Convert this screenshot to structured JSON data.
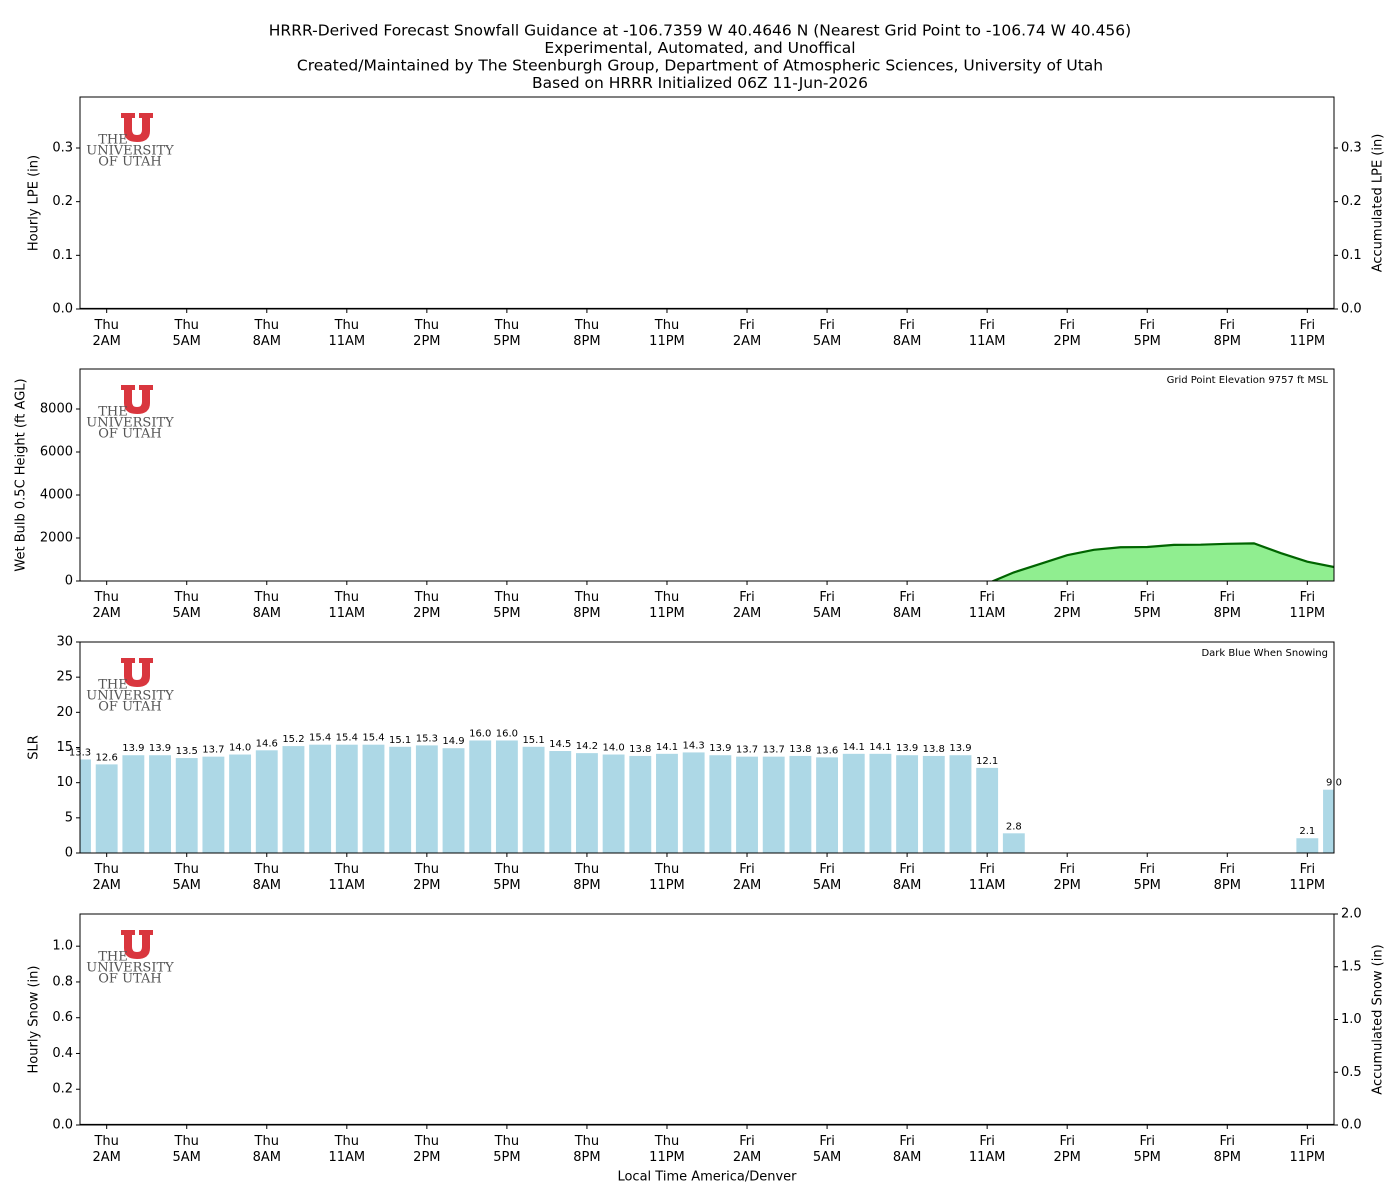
{
  "logo": [
    "THE",
    "UNIVERSITY",
    "OF UTAH"
  ],
  "chart_data": [
    {
      "type": "bar_line",
      "title": [
        "HRRR-Derived Forecast Snowfall Guidance at -106.7359 W 40.4646 N (Nearest Grid Point to -106.74 W 40.456)",
        "Experimental, Automated, and Unoffical",
        "Created/Maintained by The Steenburgh Group, Department of Atmospheric Sciences, University of Utah",
        "Based on HRRR Initialized 06Z 11-Jun-2026"
      ],
      "ylabel": "Hourly LPE (in)",
      "y2label": "Accumulated LPE (in)",
      "x": [
        0,
        1,
        2,
        3,
        4,
        5,
        6,
        7,
        8,
        9,
        10,
        11,
        12,
        13,
        14,
        15,
        16,
        17,
        18,
        19,
        20,
        21,
        22,
        23,
        24,
        25,
        26,
        27,
        28,
        29,
        30,
        31,
        32,
        33,
        34,
        35,
        36,
        37,
        38,
        39,
        40,
        41,
        42,
        43,
        44,
        45,
        46,
        47
      ],
      "xlim": [
        0,
        47
      ],
      "xticks": [
        {
          "value": 1,
          "label": "Thu 2AM"
        },
        {
          "value": 4,
          "label": "Thu 5AM"
        },
        {
          "value": 7,
          "label": "Thu 8AM"
        },
        {
          "value": 10,
          "label": "Thu 11AM"
        },
        {
          "value": 13,
          "label": "Thu 2PM"
        },
        {
          "value": 16,
          "label": "Thu 5PM"
        },
        {
          "value": 19,
          "label": "Thu 8PM"
        },
        {
          "value": 22,
          "label": "Thu 11PM"
        },
        {
          "value": 25,
          "label": "Fri 2AM"
        },
        {
          "value": 28,
          "label": "Fri 5AM"
        },
        {
          "value": 31,
          "label": "Fri 8AM"
        },
        {
          "value": 34,
          "label": "Fri 11AM"
        },
        {
          "value": 37,
          "label": "Fri 2PM"
        },
        {
          "value": 40,
          "label": "Fri 5PM"
        },
        {
          "value": 43,
          "label": "Fri 8PM"
        },
        {
          "value": 46,
          "label": "Fri 11PM"
        }
      ],
      "ylim": [
        0,
        0.395
      ],
      "yticks": [
        {
          "value": 0,
          "label": "0.0"
        },
        0.1,
        0.2,
        0.3
      ],
      "y2lim": [
        0,
        0.395
      ],
      "y2ticks": [
        {
          "value": 0,
          "label": "0.0"
        },
        0.1,
        0.2,
        0.3
      ],
      "series": [
        {
          "color": "#1f77b4",
          "values": [
            0,
            0,
            0,
            0,
            0,
            0,
            0,
            0,
            0,
            0,
            0,
            0,
            0,
            0,
            0,
            0,
            0,
            0,
            0,
            0,
            0,
            0,
            0,
            0,
            0,
            0,
            0,
            0,
            0,
            0,
            0,
            0,
            0,
            0,
            0,
            0,
            0,
            0,
            0,
            0,
            0,
            0,
            0,
            0,
            0,
            0,
            0,
            0
          ]
        },
        {
          "color": "#000000",
          "axis": "y2",
          "values": [
            0,
            0,
            0,
            0,
            0,
            0,
            0,
            0,
            0,
            0,
            0,
            0,
            0,
            0,
            0,
            0,
            0,
            0,
            0,
            0,
            0,
            0,
            0,
            0,
            0,
            0,
            0,
            0,
            0,
            0,
            0,
            0,
            0,
            0,
            0,
            0,
            0,
            0,
            0,
            0,
            0,
            0,
            0,
            0,
            0,
            0,
            0,
            0
          ]
        }
      ]
    },
    {
      "type": "area",
      "ylabel": "Wet Bulb 0.5C Height (ft AGL)",
      "annotation": "Grid Point Elevation 9757 ft MSL",
      "x": [
        0,
        1,
        2,
        3,
        4,
        5,
        6,
        7,
        8,
        9,
        10,
        11,
        12,
        13,
        14,
        15,
        16,
        17,
        18,
        19,
        20,
        21,
        22,
        23,
        24,
        25,
        26,
        27,
        28,
        29,
        30,
        31,
        32,
        33,
        34,
        35,
        36,
        37,
        38,
        39,
        40,
        41,
        42,
        43,
        44,
        45,
        46,
        47
      ],
      "xlim": [
        0,
        47
      ],
      "xticks": [
        {
          "value": 1,
          "label": "Thu 2AM"
        },
        {
          "value": 4,
          "label": "Thu 5AM"
        },
        {
          "value": 7,
          "label": "Thu 8AM"
        },
        {
          "value": 10,
          "label": "Thu 11AM"
        },
        {
          "value": 13,
          "label": "Thu 2PM"
        },
        {
          "value": 16,
          "label": "Thu 5PM"
        },
        {
          "value": 19,
          "label": "Thu 8PM"
        },
        {
          "value": 22,
          "label": "Thu 11PM"
        },
        {
          "value": 25,
          "label": "Fri 2AM"
        },
        {
          "value": 28,
          "label": "Fri 5AM"
        },
        {
          "value": 31,
          "label": "Fri 8AM"
        },
        {
          "value": 34,
          "label": "Fri 11AM"
        },
        {
          "value": 37,
          "label": "Fri 2PM"
        },
        {
          "value": 40,
          "label": "Fri 5PM"
        },
        {
          "value": 43,
          "label": "Fri 8PM"
        },
        {
          "value": 46,
          "label": "Fri 11PM"
        }
      ],
      "ylim": [
        0,
        9860
      ],
      "yticks": [
        0,
        2000,
        4000,
        6000,
        8000
      ],
      "series": [
        {
          "color": "#90ee90",
          "line_color": "#006400",
          "values": [
            null,
            null,
            null,
            null,
            null,
            null,
            null,
            null,
            null,
            null,
            null,
            null,
            null,
            null,
            null,
            null,
            null,
            null,
            null,
            null,
            null,
            null,
            null,
            null,
            null,
            null,
            null,
            null,
            null,
            null,
            null,
            null,
            null,
            null,
            -120,
            400,
            800,
            1200,
            1450,
            1570,
            1580,
            1680,
            1690,
            1730,
            1750,
            1300,
            900,
            650
          ]
        }
      ]
    },
    {
      "type": "bar",
      "ylabel": "SLR",
      "annotation": "Dark Blue When Snowing",
      "x": [
        0,
        1,
        2,
        3,
        4,
        5,
        6,
        7,
        8,
        9,
        10,
        11,
        12,
        13,
        14,
        15,
        16,
        17,
        18,
        19,
        20,
        21,
        22,
        23,
        24,
        25,
        26,
        27,
        28,
        29,
        30,
        31,
        32,
        33,
        34,
        35,
        36,
        37,
        38,
        39,
        40,
        41,
        42,
        43,
        44,
        45,
        46,
        47
      ],
      "xlim": [
        0,
        47
      ],
      "xticks": [
        {
          "value": 1,
          "label": "Thu 2AM"
        },
        {
          "value": 4,
          "label": "Thu 5AM"
        },
        {
          "value": 7,
          "label": "Thu 8AM"
        },
        {
          "value": 10,
          "label": "Thu 11AM"
        },
        {
          "value": 13,
          "label": "Thu 2PM"
        },
        {
          "value": 16,
          "label": "Thu 5PM"
        },
        {
          "value": 19,
          "label": "Thu 8PM"
        },
        {
          "value": 22,
          "label": "Thu 11PM"
        },
        {
          "value": 25,
          "label": "Fri 2AM"
        },
        {
          "value": 28,
          "label": "Fri 5AM"
        },
        {
          "value": 31,
          "label": "Fri 8AM"
        },
        {
          "value": 34,
          "label": "Fri 11AM"
        },
        {
          "value": 37,
          "label": "Fri 2PM"
        },
        {
          "value": 40,
          "label": "Fri 5PM"
        },
        {
          "value": 43,
          "label": "Fri 8PM"
        },
        {
          "value": 46,
          "label": "Fri 11PM"
        }
      ],
      "ylim": [
        0,
        30
      ],
      "yticks": [
        0,
        5,
        10,
        15,
        20,
        25,
        30
      ],
      "series": [
        {
          "color": "#add8e6",
          "values": [
            13.3,
            12.6,
            13.9,
            13.9,
            13.5,
            13.7,
            14,
            14.6,
            15.2,
            15.4,
            15.4,
            15.4,
            15.1,
            15.3,
            14.9,
            16,
            16,
            15.1,
            14.5,
            14.2,
            14,
            13.8,
            14.1,
            14.3,
            13.9,
            13.7,
            13.7,
            13.8,
            13.6,
            14.1,
            14.1,
            13.9,
            13.8,
            13.9,
            12.1,
            2.8,
            null,
            null,
            null,
            null,
            null,
            null,
            null,
            null,
            null,
            null,
            2.1,
            9
          ],
          "value_labels": [
            "13.3",
            "12.6",
            "13.9",
            "13.9",
            "13.5",
            "13.7",
            "14.0",
            "14.6",
            "15.2",
            "15.4",
            "15.4",
            "15.4",
            "15.1",
            "15.3",
            "14.9",
            "16.0",
            "16.0",
            "15.1",
            "14.5",
            "14.2",
            "14.0",
            "13.8",
            "14.1",
            "14.3",
            "13.9",
            "13.7",
            "13.7",
            "13.8",
            "13.6",
            "14.1",
            "14.1",
            "13.9",
            "13.8",
            "13.9",
            "12.1",
            "2.8",
            null,
            null,
            null,
            null,
            null,
            null,
            null,
            null,
            null,
            null,
            "2.1",
            "9.0"
          ]
        }
      ]
    },
    {
      "type": "bar_line",
      "ylabel": "Hourly Snow (in)",
      "y2label": "Accumulated Snow (in)",
      "xlabel": "Local Time America/Denver",
      "x": [
        0,
        1,
        2,
        3,
        4,
        5,
        6,
        7,
        8,
        9,
        10,
        11,
        12,
        13,
        14,
        15,
        16,
        17,
        18,
        19,
        20,
        21,
        22,
        23,
        24,
        25,
        26,
        27,
        28,
        29,
        30,
        31,
        32,
        33,
        34,
        35,
        36,
        37,
        38,
        39,
        40,
        41,
        42,
        43,
        44,
        45,
        46,
        47
      ],
      "xlim": [
        0,
        47
      ],
      "xticks": [
        {
          "value": 1,
          "label": "Thu 2AM"
        },
        {
          "value": 4,
          "label": "Thu 5AM"
        },
        {
          "value": 7,
          "label": "Thu 8AM"
        },
        {
          "value": 10,
          "label": "Thu 11AM"
        },
        {
          "value": 13,
          "label": "Thu 2PM"
        },
        {
          "value": 16,
          "label": "Thu 5PM"
        },
        {
          "value": 19,
          "label": "Thu 8PM"
        },
        {
          "value": 22,
          "label": "Thu 11PM"
        },
        {
          "value": 25,
          "label": "Fri 2AM"
        },
        {
          "value": 28,
          "label": "Fri 5AM"
        },
        {
          "value": 31,
          "label": "Fri 8AM"
        },
        {
          "value": 34,
          "label": "Fri 11AM"
        },
        {
          "value": 37,
          "label": "Fri 2PM"
        },
        {
          "value": 40,
          "label": "Fri 5PM"
        },
        {
          "value": 43,
          "label": "Fri 8PM"
        },
        {
          "value": 46,
          "label": "Fri 11PM"
        }
      ],
      "ylim": [
        0,
        1.18
      ],
      "yticks": [
        {
          "value": 0,
          "label": "0.0"
        },
        {
          "value": 0.2,
          "label": "0.2"
        },
        {
          "value": 0.4,
          "label": "0.4"
        },
        {
          "value": 0.6,
          "label": "0.6"
        },
        {
          "value": 0.8,
          "label": "0.8"
        },
        {
          "value": 1,
          "label": "1.0"
        }
      ],
      "y2lim": [
        0,
        2
      ],
      "y2ticks": [
        {
          "value": 0,
          "label": "0.0"
        },
        0.5,
        {
          "value": 1,
          "label": "1.0"
        },
        1.5,
        {
          "value": 2,
          "label": "2.0"
        }
      ],
      "series": [
        {
          "color": "#1f77b4",
          "values": [
            0,
            0,
            0,
            0,
            0,
            0,
            0,
            0,
            0,
            0,
            0,
            0,
            0,
            0,
            0,
            0,
            0,
            0,
            0,
            0,
            0,
            0,
            0,
            0,
            0,
            0,
            0,
            0,
            0,
            0,
            0,
            0,
            0,
            0,
            0,
            0,
            0,
            0,
            0,
            0,
            0,
            0,
            0,
            0,
            0,
            0,
            0,
            0
          ]
        },
        {
          "color": "#000000",
          "axis": "y2",
          "values": [
            0,
            0,
            0,
            0,
            0,
            0,
            0,
            0,
            0,
            0,
            0,
            0,
            0,
            0,
            0,
            0,
            0,
            0,
            0,
            0,
            0,
            0,
            0,
            0,
            0,
            0,
            0,
            0,
            0,
            0,
            0,
            0,
            0,
            0,
            0,
            0,
            0,
            0,
            0,
            0,
            0,
            0,
            0,
            0,
            0,
            0,
            0,
            0
          ]
        }
      ]
    }
  ]
}
